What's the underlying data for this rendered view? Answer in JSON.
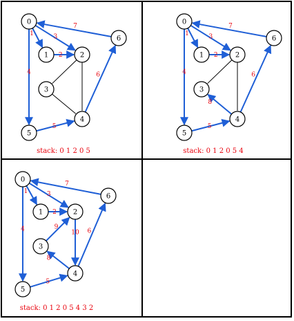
{
  "figure": {
    "description": "Four-panel grid showing depth-first traversal steps on a weighted graph",
    "colors": {
      "visited_edge": "#1f5fd6",
      "unvisited_edge": "#000000",
      "weight_label": "#e8000b",
      "stack_label": "#e8000b",
      "border": "#000000"
    }
  },
  "panels": [
    {
      "id": "panel-1",
      "stack_text": "stack: 0 1 2 0 5",
      "edges": [
        {
          "from": 0,
          "to": 1,
          "weight": "1",
          "visited": true,
          "arrow": true,
          "dir": "fwd"
        },
        {
          "from": 0,
          "to": 2,
          "weight": "3",
          "visited": true,
          "arrow": true,
          "dir": "fwd"
        },
        {
          "from": 6,
          "to": 0,
          "weight": "7",
          "visited": true,
          "arrow": true,
          "dir": "fwd"
        },
        {
          "from": 1,
          "to": 2,
          "weight": "2",
          "visited": true,
          "arrow": true,
          "dir": "fwd"
        },
        {
          "from": 0,
          "to": 5,
          "weight": "4",
          "visited": true,
          "arrow": true,
          "dir": "fwd"
        },
        {
          "from": 5,
          "to": 4,
          "weight": "5",
          "visited": true,
          "arrow": true,
          "dir": "fwd"
        },
        {
          "from": 4,
          "to": 6,
          "weight": "6",
          "visited": true,
          "arrow": true,
          "dir": "fwd"
        },
        {
          "from": 2,
          "to": 3,
          "weight": "",
          "visited": false,
          "arrow": false
        },
        {
          "from": 2,
          "to": 4,
          "weight": "",
          "visited": false,
          "arrow": false
        },
        {
          "from": 3,
          "to": 4,
          "weight": "",
          "visited": false,
          "arrow": false
        }
      ]
    },
    {
      "id": "panel-2",
      "stack_text": "stack: 0 1 2 0 5 4",
      "edges": [
        {
          "from": 0,
          "to": 1,
          "weight": "1",
          "visited": true,
          "arrow": true
        },
        {
          "from": 0,
          "to": 2,
          "weight": "3",
          "visited": true,
          "arrow": true
        },
        {
          "from": 6,
          "to": 0,
          "weight": "7",
          "visited": true,
          "arrow": true
        },
        {
          "from": 1,
          "to": 2,
          "weight": "2",
          "visited": true,
          "arrow": true
        },
        {
          "from": 0,
          "to": 5,
          "weight": "4",
          "visited": true,
          "arrow": true
        },
        {
          "from": 5,
          "to": 4,
          "weight": "5",
          "visited": true,
          "arrow": true
        },
        {
          "from": 4,
          "to": 6,
          "weight": "6",
          "visited": true,
          "arrow": true
        },
        {
          "from": 4,
          "to": 3,
          "weight": "8",
          "visited": true,
          "arrow": true
        },
        {
          "from": 2,
          "to": 3,
          "weight": "",
          "visited": false,
          "arrow": false
        },
        {
          "from": 2,
          "to": 4,
          "weight": "",
          "visited": false,
          "arrow": false
        }
      ]
    },
    {
      "id": "panel-3",
      "stack_text": "stack: 0 1 2 0 5 4 3 2",
      "edges": [
        {
          "from": 0,
          "to": 1,
          "weight": "1",
          "visited": true,
          "arrow": true
        },
        {
          "from": 0,
          "to": 2,
          "weight": "3",
          "visited": true,
          "arrow": true
        },
        {
          "from": 6,
          "to": 0,
          "weight": "7",
          "visited": true,
          "arrow": true
        },
        {
          "from": 1,
          "to": 2,
          "weight": "2",
          "visited": true,
          "arrow": true
        },
        {
          "from": 0,
          "to": 5,
          "weight": "4",
          "visited": true,
          "arrow": true
        },
        {
          "from": 5,
          "to": 4,
          "weight": "5",
          "visited": true,
          "arrow": true
        },
        {
          "from": 4,
          "to": 6,
          "weight": "6",
          "visited": true,
          "arrow": true
        },
        {
          "from": 4,
          "to": 3,
          "weight": "8",
          "visited": true,
          "arrow": true
        },
        {
          "from": 3,
          "to": 2,
          "weight": "9",
          "visited": true,
          "arrow": true
        },
        {
          "from": 2,
          "to": 4,
          "weight": "10",
          "visited": true,
          "arrow": true
        }
      ]
    },
    {
      "id": "panel-4",
      "stack_text": "",
      "edges": []
    }
  ],
  "nodes": [
    {
      "id": 0,
      "label": "0"
    },
    {
      "id": 1,
      "label": "1"
    },
    {
      "id": 2,
      "label": "2"
    },
    {
      "id": 3,
      "label": "3"
    },
    {
      "id": 4,
      "label": "4"
    },
    {
      "id": 5,
      "label": "5"
    },
    {
      "id": 6,
      "label": "6"
    }
  ]
}
